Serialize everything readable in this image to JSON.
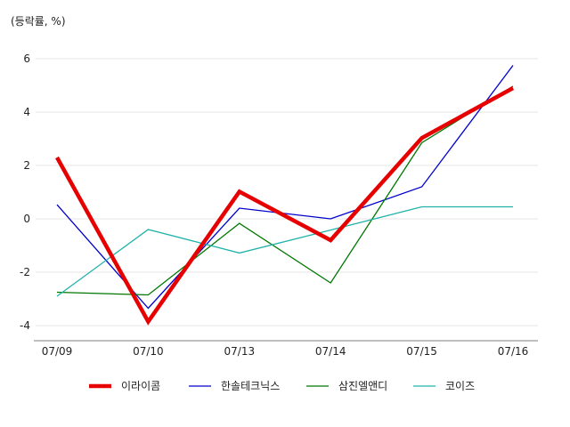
{
  "chart_data": {
    "type": "line",
    "ylabel": "(등락률, %)",
    "categories": [
      "07/09",
      "07/10",
      "07/13",
      "07/14",
      "07/15",
      "07/16"
    ],
    "ylim": [
      -4.6,
      6.6
    ],
    "yticks": [
      6,
      4,
      2,
      0,
      -2,
      -4
    ],
    "grid": true,
    "legend_position": "bottom",
    "series": [
      {
        "name": "이라이콤",
        "color": "#e60000",
        "emphasis": true,
        "values": [
          2.3,
          -3.85,
          1.02,
          -0.8,
          3.03,
          4.9
        ]
      },
      {
        "name": "한솔테크닉스",
        "color": "#0000cc",
        "emphasis": false,
        "values": [
          0.53,
          -3.35,
          0.4,
          0.0,
          1.2,
          5.75
        ]
      },
      {
        "name": "삼진엘앤디",
        "color": "#007700",
        "emphasis": false,
        "values": [
          -2.75,
          -2.85,
          -0.17,
          -2.4,
          2.85,
          4.97
        ]
      },
      {
        "name": "코이즈",
        "color": "#20b2aa",
        "emphasis": false,
        "values": [
          -2.9,
          -0.4,
          -1.28,
          -0.42,
          0.45,
          0.45
        ]
      }
    ]
  }
}
